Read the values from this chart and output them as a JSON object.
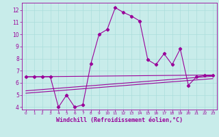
{
  "xlabel": "Windchill (Refroidissement éolien,°C)",
  "bg_color": "#c8ecea",
  "grid_color": "#aadddb",
  "line_color": "#990099",
  "xlim": [
    -0.5,
    23.5
  ],
  "ylim": [
    3.8,
    12.6
  ],
  "xticks": [
    0,
    1,
    2,
    3,
    4,
    5,
    6,
    7,
    8,
    9,
    10,
    11,
    12,
    13,
    14,
    15,
    16,
    17,
    18,
    19,
    20,
    21,
    22,
    23
  ],
  "yticks": [
    4,
    5,
    6,
    7,
    8,
    9,
    10,
    11,
    12
  ],
  "series": [
    {
      "x": [
        0,
        1,
        2,
        3,
        4,
        5,
        6,
        7,
        8,
        9,
        10,
        11,
        12,
        13,
        14,
        15,
        16,
        17,
        18,
        19,
        20,
        21,
        22,
        23
      ],
      "y": [
        6.5,
        6.5,
        6.5,
        6.5,
        4.0,
        5.0,
        4.0,
        4.2,
        7.6,
        10.0,
        10.4,
        12.2,
        11.8,
        11.5,
        11.1,
        7.9,
        7.5,
        8.4,
        7.5,
        8.8,
        5.8,
        6.5,
        6.6,
        6.6
      ],
      "marker": "D",
      "markersize": 2.2,
      "linewidth": 0.8
    },
    {
      "x": [
        0,
        23
      ],
      "y": [
        6.5,
        6.65
      ],
      "marker": null,
      "markersize": 0,
      "linewidth": 0.8
    },
    {
      "x": [
        0,
        23
      ],
      "y": [
        5.35,
        6.55
      ],
      "marker": null,
      "markersize": 0,
      "linewidth": 0.8
    },
    {
      "x": [
        0,
        23
      ],
      "y": [
        5.15,
        6.35
      ],
      "marker": null,
      "markersize": 0,
      "linewidth": 0.8
    }
  ],
  "xlabel_fontsize": 6.0,
  "tick_fontsize_x": 4.2,
  "tick_fontsize_y": 5.5
}
